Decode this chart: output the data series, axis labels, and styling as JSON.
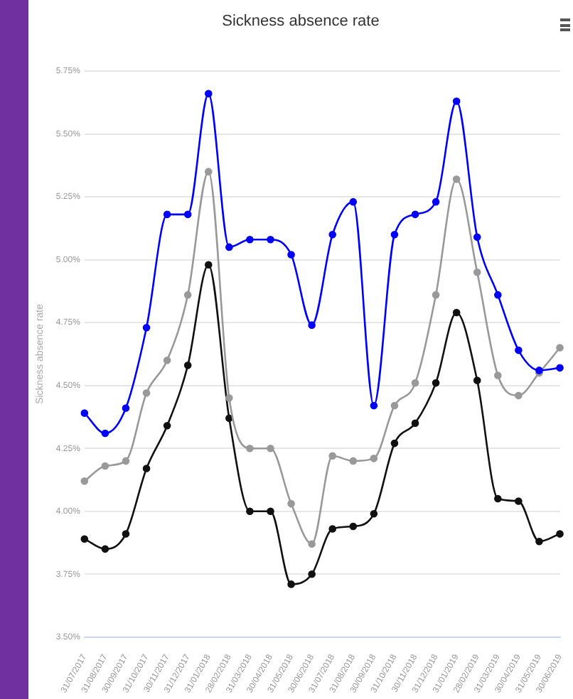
{
  "chart_data": {
    "type": "line",
    "title": "Sickness absence rate",
    "ylabel": "Sickness absence rate",
    "categories": [
      "31/07/2017",
      "31/08/2017",
      "30/09/2017",
      "31/10/2017",
      "30/11/2017",
      "31/12/2017",
      "31/01/2018",
      "28/02/2018",
      "31/03/2018",
      "30/04/2018",
      "31/05/2018",
      "30/06/2018",
      "31/07/2018",
      "31/08/2018",
      "30/09/2018",
      "31/10/2018",
      "30/11/2018",
      "31/12/2018",
      "31/01/2019",
      "28/02/2019",
      "31/03/2019",
      "30/04/2019",
      "31/05/2019",
      "30/06/2019"
    ],
    "series": [
      {
        "color": "#0000ff",
        "values": [
          4.39,
          4.31,
          4.41,
          4.73,
          5.18,
          5.18,
          5.66,
          5.05,
          5.08,
          5.08,
          5.02,
          4.74,
          5.1,
          5.23,
          4.42,
          5.1,
          5.18,
          5.23,
          5.63,
          5.09,
          4.86,
          4.64,
          4.56,
          4.57
        ]
      },
      {
        "color": "#999999",
        "values": [
          4.12,
          4.18,
          4.2,
          4.47,
          4.6,
          4.86,
          5.35,
          4.45,
          4.25,
          4.25,
          4.03,
          3.87,
          4.22,
          4.2,
          4.21,
          4.42,
          4.51,
          4.86,
          5.32,
          4.95,
          4.54,
          4.46,
          4.55,
          4.65
        ]
      },
      {
        "color": "#111111",
        "values": [
          3.89,
          3.85,
          3.91,
          4.17,
          4.34,
          4.58,
          4.98,
          4.37,
          4,
          4,
          3.71,
          3.75,
          3.93,
          3.94,
          3.99,
          4.27,
          4.35,
          4.51,
          4.79,
          4.52,
          4.05,
          4.04,
          3.88,
          3.91
        ]
      }
    ],
    "ylim": [
      3.5,
      5.75
    ],
    "yticks": [
      {
        "value": 3.5,
        "label": "3.50%"
      },
      {
        "value": 3.75,
        "label": "3.75%"
      },
      {
        "value": 4,
        "label": "4.00%"
      },
      {
        "value": 4.25,
        "label": "4.25%"
      },
      {
        "value": 4.5,
        "label": "4.50%"
      },
      {
        "value": 4.75,
        "label": "4.75%"
      },
      {
        "value": 5,
        "label": "5.00%"
      },
      {
        "value": 5.25,
        "label": "5.25%"
      },
      {
        "value": 5.5,
        "label": "5.50%"
      },
      {
        "value": 5.75,
        "label": "5.75%"
      }
    ],
    "grid": "y",
    "legend": false,
    "marker": "circle",
    "line_style": "solid"
  }
}
